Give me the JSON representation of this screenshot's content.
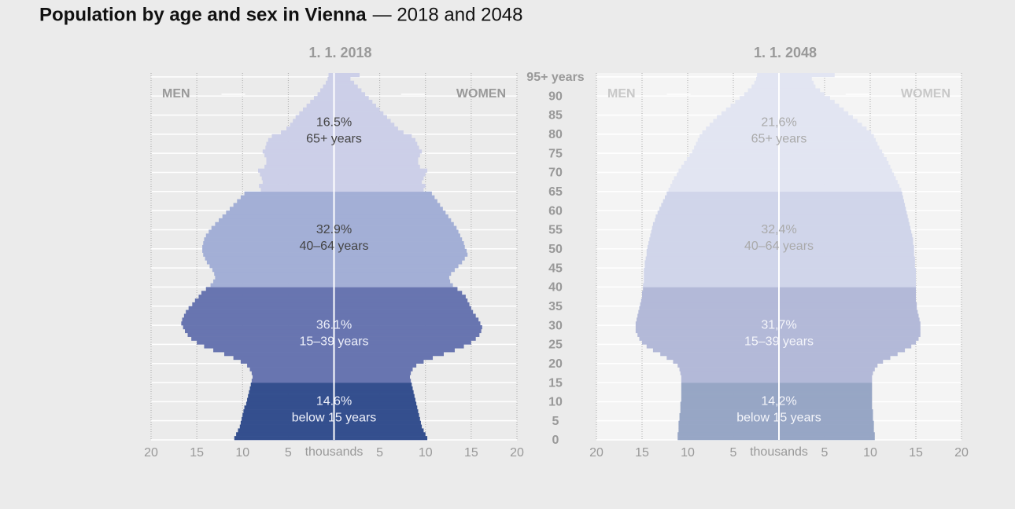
{
  "title": "Population by age and sex in Vienna",
  "subtitle": "— 2018 and 2048",
  "age_axis": {
    "ylim": [
      0,
      96
    ],
    "yticks": [
      0,
      5,
      10,
      15,
      20,
      25,
      30,
      35,
      40,
      45,
      50,
      55,
      60,
      65,
      70,
      75,
      80,
      85,
      90,
      {
        "value": 95,
        "label": "95+ years"
      }
    ]
  },
  "chart_data": [
    {
      "type": "pyramid",
      "title": "1. 1. 2018",
      "x_label": "thousands",
      "xlim": [
        -20,
        20
      ],
      "xticks": [
        {
          "value": -20,
          "label": "20"
        },
        {
          "value": -15,
          "label": "15"
        },
        {
          "value": -10,
          "label": "10"
        },
        {
          "value": -5,
          "label": "5"
        },
        5,
        10,
        15,
        20
      ],
      "grid": true,
      "series": [
        {
          "name": "MEN",
          "side": "left",
          "values": [
            10.9,
            10.7,
            10.5,
            10.3,
            10.2,
            10.1,
            10.0,
            9.9,
            9.8,
            9.6,
            9.5,
            9.4,
            9.3,
            9.2,
            9.1,
            9.0,
            8.9,
            9.0,
            9.2,
            9.5,
            10.2,
            11.0,
            12.0,
            13.2,
            14.2,
            15.0,
            15.6,
            16.0,
            16.3,
            16.5,
            16.7,
            16.6,
            16.4,
            16.2,
            15.9,
            15.5,
            15.2,
            14.8,
            14.5,
            14.0,
            13.5,
            13.2,
            13.0,
            13.1,
            13.3,
            13.6,
            13.9,
            14.1,
            14.3,
            14.4,
            14.4,
            14.3,
            14.2,
            14.0,
            13.7,
            13.4,
            13.0,
            12.6,
            12.2,
            11.8,
            11.4,
            11.0,
            10.6,
            10.2,
            9.8,
            8.0,
            8.2,
            7.8,
            7.9,
            8.1,
            8.3,
            7.6,
            7.4,
            7.4,
            7.6,
            7.8,
            7.5,
            7.4,
            7.2,
            6.8,
            5.8,
            5.2,
            4.8,
            4.5,
            4.2,
            3.8,
            3.4,
            3.0,
            2.6,
            2.2,
            1.8,
            1.5,
            1.2,
            0.9,
            0.7,
            0.6
          ]
        },
        {
          "name": "WOMEN",
          "side": "right",
          "values": [
            10.2,
            10.0,
            9.8,
            9.6,
            9.5,
            9.4,
            9.3,
            9.2,
            9.1,
            9.0,
            8.9,
            8.8,
            8.7,
            8.6,
            8.5,
            8.4,
            8.3,
            8.4,
            8.6,
            9.0,
            9.8,
            10.8,
            12.0,
            13.2,
            14.2,
            15.0,
            15.5,
            15.9,
            16.1,
            16.2,
            16.0,
            15.8,
            15.5,
            15.2,
            15.0,
            14.8,
            14.6,
            14.4,
            14.0,
            13.5,
            13.0,
            12.7,
            12.6,
            12.8,
            13.2,
            13.6,
            14.0,
            14.3,
            14.6,
            14.5,
            14.3,
            14.2,
            14.0,
            13.8,
            13.6,
            13.4,
            13.1,
            12.8,
            12.5,
            12.2,
            11.9,
            11.6,
            11.3,
            11.0,
            10.7,
            9.8,
            10.0,
            9.6,
            9.8,
            10.0,
            10.2,
            9.4,
            9.2,
            9.2,
            9.4,
            9.6,
            9.3,
            9.1,
            8.9,
            8.5,
            7.6,
            7.0,
            6.6,
            6.2,
            5.8,
            5.4,
            5.0,
            4.6,
            4.2,
            3.8,
            3.4,
            3.0,
            2.6,
            2.2,
            1.8,
            2.8
          ]
        }
      ],
      "groups": {
        "starts": [
          0,
          15,
          40,
          65
        ],
        "names": [
          "below 15 years",
          "15–39 years",
          "40–64 years",
          "65+ years"
        ],
        "values": [
          14.6,
          36.1,
          32.9,
          16.5
        ],
        "value_labels": [
          "14.6%",
          "36.1%",
          "32.9%",
          "16.5%"
        ],
        "colors": [
          "#344f8e",
          "#6875b0",
          "#a3afd6",
          "#cccfe8"
        ],
        "text_colors": [
          "#eef0fa",
          "#eef0fa",
          "#444444",
          "#444444"
        ]
      },
      "background": "#ebebeb"
    },
    {
      "type": "pyramid",
      "title": "1. 1. 2048",
      "x_label": "thousands",
      "xlim": [
        -20,
        20
      ],
      "xticks": [
        {
          "value": -20,
          "label": "20"
        },
        {
          "value": -15,
          "label": "15"
        },
        {
          "value": -10,
          "label": "10"
        },
        {
          "value": -5,
          "label": "5"
        },
        5,
        10,
        15,
        20
      ],
      "grid": true,
      "series": [
        {
          "name": "MEN",
          "side": "left",
          "values": [
            11.1,
            11.1,
            11.0,
            11.0,
            11.0,
            10.9,
            10.9,
            10.8,
            10.8,
            10.8,
            10.7,
            10.7,
            10.7,
            10.7,
            10.7,
            10.7,
            10.7,
            10.8,
            10.9,
            11.1,
            11.6,
            12.3,
            13.0,
            13.8,
            14.5,
            15.0,
            15.3,
            15.5,
            15.7,
            15.7,
            15.7,
            15.6,
            15.5,
            15.4,
            15.3,
            15.2,
            15.1,
            15.0,
            15.0,
            14.9,
            14.9,
            14.8,
            14.8,
            14.8,
            14.8,
            14.7,
            14.7,
            14.6,
            14.5,
            14.5,
            14.4,
            14.3,
            14.2,
            14.1,
            14.0,
            13.9,
            13.8,
            13.6,
            13.5,
            13.3,
            13.1,
            12.9,
            12.7,
            12.5,
            12.3,
            12.1,
            11.9,
            11.7,
            11.5,
            11.2,
            11.0,
            10.7,
            10.4,
            10.1,
            9.8,
            9.5,
            9.3,
            9.1,
            8.9,
            8.7,
            8.4,
            8.0,
            7.6,
            7.2,
            6.8,
            6.3,
            5.8,
            5.3,
            4.8,
            4.3,
            3.8,
            3.4,
            3.0,
            2.7,
            2.5,
            2.4
          ]
        },
        {
          "name": "WOMEN",
          "side": "right",
          "values": [
            10.5,
            10.5,
            10.4,
            10.4,
            10.4,
            10.3,
            10.3,
            10.3,
            10.2,
            10.2,
            10.2,
            10.2,
            10.2,
            10.2,
            10.2,
            10.2,
            10.2,
            10.3,
            10.5,
            10.8,
            11.4,
            12.2,
            13.0,
            13.8,
            14.5,
            15.0,
            15.3,
            15.5,
            15.5,
            15.5,
            15.5,
            15.4,
            15.3,
            15.2,
            15.1,
            15.1,
            15.0,
            15.0,
            15.0,
            15.0,
            15.0,
            15.0,
            15.0,
            15.0,
            15.0,
            14.9,
            14.9,
            14.9,
            14.8,
            14.8,
            14.8,
            14.7,
            14.7,
            14.6,
            14.5,
            14.4,
            14.3,
            14.2,
            14.1,
            14.0,
            13.9,
            13.8,
            13.7,
            13.6,
            13.5,
            13.4,
            13.2,
            13.0,
            12.8,
            12.6,
            12.4,
            12.2,
            12.0,
            11.8,
            11.5,
            11.3,
            11.0,
            10.8,
            10.6,
            10.4,
            10.1,
            9.6,
            9.1,
            8.6,
            8.1,
            7.6,
            7.1,
            6.6,
            6.1,
            5.6,
            5.0,
            4.5,
            4.0,
            3.8,
            3.6,
            6.1
          ]
        }
      ],
      "groups": {
        "starts": [
          0,
          15,
          40,
          65
        ],
        "names": [
          "below 15 years",
          "15–39 years",
          "40–64 years",
          "65+ years"
        ],
        "values": [
          14.2,
          31.7,
          32.4,
          21.6
        ],
        "value_labels": [
          "14,2%",
          "31,7%",
          "32,4%",
          "21,6%"
        ],
        "colors": [
          "#97a6c5",
          "#b3b9d8",
          "#d0d5ea",
          "#e2e5f2"
        ],
        "text_colors": [
          "#f4f5fa",
          "#f4f5fa",
          "#aaaaaa",
          "#aaaaaa"
        ]
      },
      "background": "#f4f4f4"
    }
  ]
}
